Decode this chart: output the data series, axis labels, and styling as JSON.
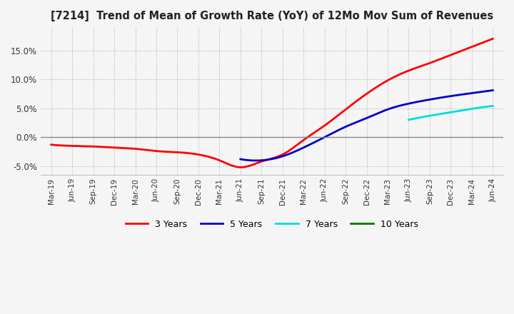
{
  "title": "[7214]  Trend of Mean of Growth Rate (YoY) of 12Mo Mov Sum of Revenues",
  "ylim": [
    -0.065,
    0.19
  ],
  "yticks": [
    -0.05,
    0.0,
    0.05,
    0.1,
    0.15
  ],
  "line_colors": {
    "3yr": "#ff0000",
    "5yr": "#0000cc",
    "7yr": "#00dddd",
    "10yr": "#007700"
  },
  "legend": [
    "3 Years",
    "5 Years",
    "7 Years",
    "10 Years"
  ],
  "x_labels": [
    "Mar-19",
    "Jun-19",
    "Sep-19",
    "Dec-19",
    "Mar-20",
    "Jun-20",
    "Sep-20",
    "Dec-20",
    "Mar-21",
    "Jun-21",
    "Sep-21",
    "Dec-21",
    "Mar-22",
    "Jun-22",
    "Sep-22",
    "Dec-22",
    "Mar-23",
    "Jun-23",
    "Sep-23",
    "Dec-23",
    "Mar-24",
    "Jun-24"
  ],
  "data_3yr": [
    -0.013,
    -0.015,
    -0.016,
    -0.018,
    -0.02,
    -0.024,
    -0.026,
    -0.03,
    -0.04,
    -0.052,
    -0.042,
    -0.03,
    -0.005,
    0.02,
    0.048,
    0.075,
    0.098,
    0.115,
    0.128,
    0.142,
    0.156,
    0.17
  ],
  "data_5yr": [
    null,
    null,
    null,
    null,
    null,
    null,
    null,
    null,
    null,
    -0.038,
    -0.04,
    -0.033,
    -0.018,
    0.0,
    0.018,
    0.033,
    0.048,
    0.058,
    0.065,
    0.071,
    0.076,
    0.081
  ],
  "data_7yr": [
    null,
    null,
    null,
    null,
    null,
    null,
    null,
    null,
    null,
    null,
    null,
    null,
    null,
    null,
    null,
    null,
    null,
    0.03,
    0.037,
    0.043,
    0.049,
    0.054
  ],
  "data_10yr": [
    null,
    null,
    null,
    null,
    null,
    null,
    null,
    null,
    null,
    null,
    null,
    null,
    null,
    null,
    null,
    null,
    null,
    null,
    null,
    null,
    null,
    null
  ],
  "background_color": "#f5f5f5",
  "grid_color": "#aaaaaa",
  "zero_line_color": "#888888"
}
